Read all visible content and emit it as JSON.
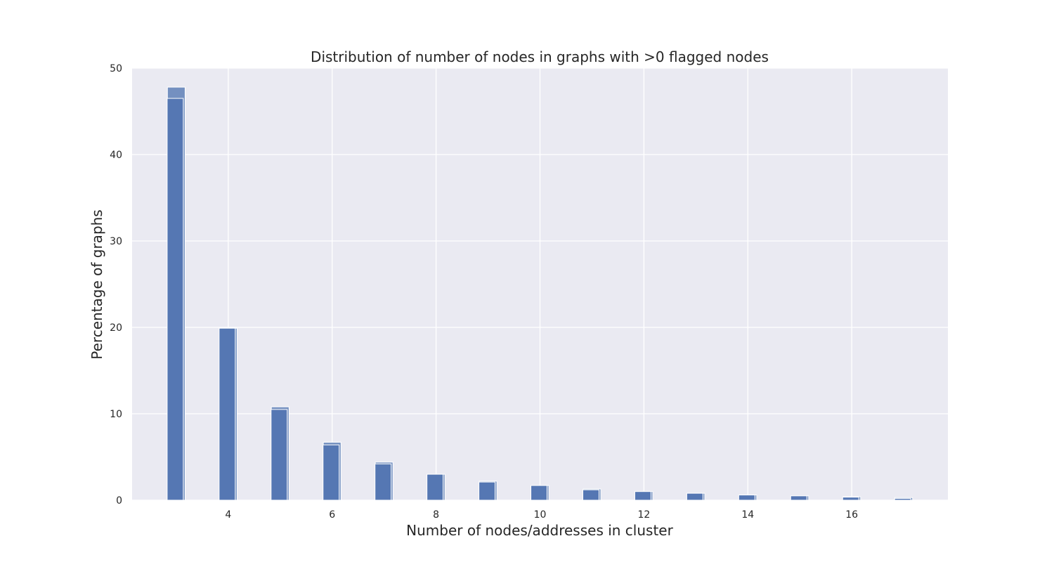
{
  "chart_data": {
    "type": "bar",
    "title": "Distribution of number of nodes in graphs with >0 flagged nodes",
    "xlabel": "Number of nodes/addresses in cluster",
    "ylabel": "Percentage of graphs",
    "xlim": [
      2.15,
      17.85
    ],
    "ylim": [
      0,
      50
    ],
    "xticks": [
      4,
      6,
      8,
      10,
      12,
      14,
      16
    ],
    "yticks": [
      0,
      10,
      20,
      30,
      40,
      50
    ],
    "grid": true,
    "legend": "none",
    "colors": {
      "background": "#eaeaf2",
      "grid": "#ffffff",
      "series_front": "#5577b3",
      "series_back": "#7490c0"
    },
    "series": [
      {
        "x": [
          3,
          4,
          5,
          6,
          7,
          8,
          9,
          10,
          11,
          12,
          13,
          14,
          15,
          16,
          17
        ],
        "values": [
          47.8,
          19.9,
          10.8,
          6.7,
          4.4,
          3.0,
          2.2,
          1.7,
          1.3,
          1.0,
          0.8,
          0.6,
          0.5,
          0.4,
          0.3
        ]
      },
      {
        "x": [
          3,
          4,
          5,
          6,
          7,
          8,
          9,
          10,
          11,
          12,
          13,
          14,
          15,
          16,
          17
        ],
        "values": [
          46.5,
          19.9,
          10.5,
          6.4,
          4.2,
          3.0,
          2.1,
          1.7,
          1.2,
          1.0,
          0.8,
          0.6,
          0.5,
          0.35,
          0.2
        ]
      }
    ]
  }
}
